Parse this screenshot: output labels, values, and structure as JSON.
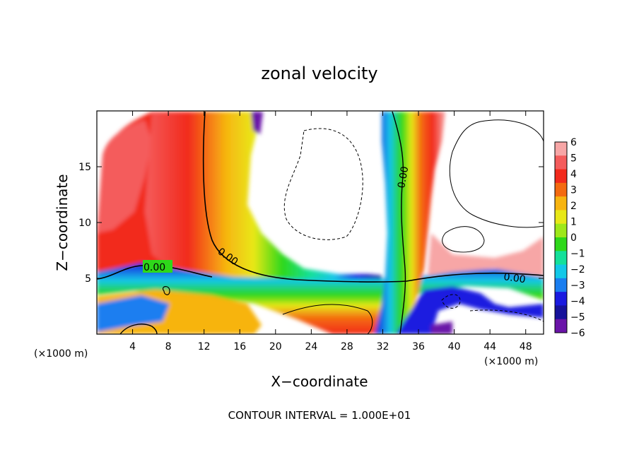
{
  "chart_data": {
    "type": "heatmap",
    "title": "zonal velocity",
    "xlabel": "X−coordinate",
    "ylabel": "Z−coordinate",
    "x_unit_left": "(×1000 m)",
    "x_unit_right": "(×1000 m)",
    "xlim": [
      0,
      50
    ],
    "ylim": [
      0,
      20
    ],
    "x_ticks": [
      "4",
      "8",
      "12",
      "16",
      "20",
      "24",
      "28",
      "32",
      "36",
      "40",
      "44",
      "48"
    ],
    "x_tick_values": [
      4,
      8,
      12,
      16,
      20,
      24,
      28,
      32,
      36,
      40,
      44,
      48
    ],
    "y_ticks": [
      "5",
      "10",
      "15"
    ],
    "y_tick_values": [
      5,
      10,
      15
    ],
    "colorbar": {
      "labels": [
        "6",
        "5",
        "4",
        "3",
        "2",
        "1",
        "0",
        "−1",
        "−2",
        "−3",
        "−4",
        "−5",
        "−6"
      ],
      "values": [
        6,
        5,
        4,
        3,
        2,
        1,
        0,
        -1,
        -2,
        -3,
        -4,
        -5,
        -6
      ],
      "colors": [
        "#f7a6a6",
        "#f45c5c",
        "#f22a1c",
        "#f46a10",
        "#f7b410",
        "#e8e818",
        "#9ee81a",
        "#2ed81a",
        "#14e09a",
        "#12c8e8",
        "#1a7ef0",
        "#1a1ae0",
        "#16129a",
        "#6a14a8"
      ]
    },
    "contour_labels": [
      "0.00",
      "0.00",
      "0.00",
      "0.00"
    ],
    "contour_interval_text": "CONTOUR INTERVAL = 1.000E+01",
    "grid": false
  }
}
